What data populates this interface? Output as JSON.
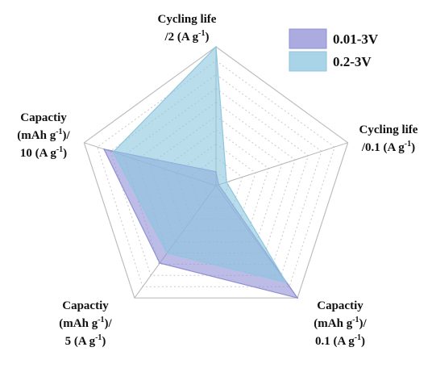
{
  "chart_data": {
    "type": "radar",
    "axes": [
      {
        "lines": [
          {
            "t": "Cycling life"
          },
          {
            "t": "/2 (A g",
            "sup": "-1",
            "after": ")"
          }
        ]
      },
      {
        "lines": [
          {
            "t": "Cycling life"
          },
          {
            "t": "/0.1 (A g",
            "sup": "-1",
            "after": ")"
          }
        ]
      },
      {
        "lines": [
          {
            "t": "Capactiy"
          },
          {
            "t": "(mAh g",
            "sup": "-1",
            "after": ")/"
          },
          {
            "t": "0.1 (A g",
            "sup": "-1",
            "after": ")"
          }
        ]
      },
      {
        "lines": [
          {
            "t": "Capactiy"
          },
          {
            "t": "(mAh g",
            "sup": "-1",
            "after": ")/"
          },
          {
            "t": "5 (A g",
            "sup": "-1",
            "after": ")"
          }
        ]
      },
      {
        "lines": [
          {
            "t": "Capactiy"
          },
          {
            "t": "(mAh g",
            "sup": "-1",
            "after": ")/"
          },
          {
            "t": "10 (A g",
            "sup": "-1",
            "after": ")"
          }
        ]
      }
    ],
    "ticks": 10,
    "range": [
      0,
      1
    ],
    "series": [
      {
        "name": "0.01-3V",
        "values": [
          0.1,
          0.02,
          1.0,
          0.69,
          0.85
        ],
        "color": "#8f8fd6"
      },
      {
        "name": "0.2-3V",
        "values": [
          1.0,
          0.08,
          0.86,
          0.6,
          0.78
        ],
        "color": "#8cc6e0"
      }
    ],
    "legend_position": "top-right"
  }
}
